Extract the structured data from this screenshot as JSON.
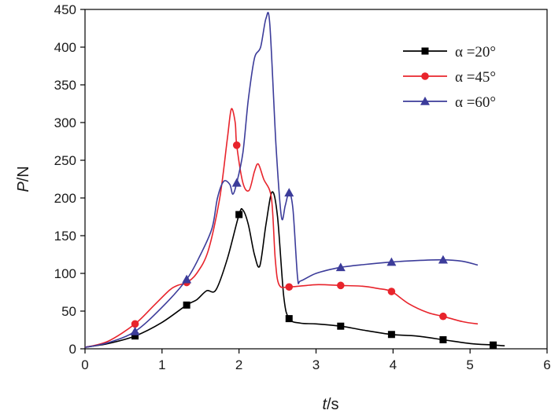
{
  "chart_data": {
    "type": "line",
    "xlabel": {
      "var": "t",
      "unit": "/s"
    },
    "ylabel": {
      "var": "P",
      "unit": "/N"
    },
    "xlim": [
      0,
      6
    ],
    "ylim": [
      0,
      450
    ],
    "xticks": [
      0,
      1,
      2,
      3,
      4,
      5,
      6
    ],
    "yticks": [
      0,
      50,
      100,
      150,
      200,
      250,
      300,
      350,
      400,
      450
    ],
    "grid": false,
    "legend_position": "top-right",
    "series": [
      {
        "name": "α =20°",
        "color": "#000000",
        "marker": "square",
        "markers": [
          [
            0.65,
            17
          ],
          [
            1.32,
            58
          ],
          [
            2.0,
            178
          ],
          [
            2.65,
            40
          ],
          [
            3.32,
            30
          ],
          [
            3.98,
            19
          ],
          [
            4.65,
            12
          ],
          [
            5.3,
            5
          ]
        ],
        "curve": [
          [
            0,
            2
          ],
          [
            0.3,
            7
          ],
          [
            0.65,
            17
          ],
          [
            1.0,
            35
          ],
          [
            1.32,
            58
          ],
          [
            1.45,
            65
          ],
          [
            1.58,
            77
          ],
          [
            1.7,
            78
          ],
          [
            1.85,
            120
          ],
          [
            2.0,
            178
          ],
          [
            2.05,
            184
          ],
          [
            2.12,
            165
          ],
          [
            2.2,
            125
          ],
          [
            2.27,
            110
          ],
          [
            2.35,
            165
          ],
          [
            2.43,
            208
          ],
          [
            2.5,
            175
          ],
          [
            2.58,
            70
          ],
          [
            2.65,
            40
          ],
          [
            2.8,
            34
          ],
          [
            3.0,
            33
          ],
          [
            3.32,
            30
          ],
          [
            3.6,
            25
          ],
          [
            3.98,
            19
          ],
          [
            4.3,
            17
          ],
          [
            4.65,
            12
          ],
          [
            5.0,
            7
          ],
          [
            5.3,
            5
          ],
          [
            5.45,
            4
          ]
        ]
      },
      {
        "name": "α =45°",
        "color": "#e8242c",
        "marker": "circle",
        "markers": [
          [
            0.65,
            33
          ],
          [
            1.32,
            88
          ],
          [
            1.97,
            270
          ],
          [
            2.65,
            82
          ],
          [
            3.32,
            84
          ],
          [
            3.98,
            76
          ],
          [
            4.65,
            43
          ]
        ],
        "curve": [
          [
            0,
            2
          ],
          [
            0.3,
            10
          ],
          [
            0.65,
            33
          ],
          [
            0.9,
            58
          ],
          [
            1.1,
            78
          ],
          [
            1.2,
            84
          ],
          [
            1.32,
            88
          ],
          [
            1.45,
            100
          ],
          [
            1.6,
            130
          ],
          [
            1.75,
            200
          ],
          [
            1.85,
            280
          ],
          [
            1.9,
            318
          ],
          [
            1.95,
            300
          ],
          [
            1.97,
            270
          ],
          [
            2.05,
            220
          ],
          [
            2.13,
            210
          ],
          [
            2.2,
            235
          ],
          [
            2.25,
            245
          ],
          [
            2.32,
            225
          ],
          [
            2.42,
            200
          ],
          [
            2.47,
            120
          ],
          [
            2.52,
            85
          ],
          [
            2.65,
            82
          ],
          [
            3.0,
            85
          ],
          [
            3.32,
            84
          ],
          [
            3.6,
            83
          ],
          [
            3.8,
            80
          ],
          [
            3.98,
            76
          ],
          [
            4.2,
            60
          ],
          [
            4.45,
            48
          ],
          [
            4.65,
            43
          ],
          [
            4.9,
            36
          ],
          [
            5.1,
            33
          ]
        ]
      },
      {
        "name": "α =60°",
        "color": "#3c3c9a",
        "marker": "triangle",
        "markers": [
          [
            0.65,
            23
          ],
          [
            1.32,
            92
          ],
          [
            1.97,
            220
          ],
          [
            2.65,
            207
          ],
          [
            3.32,
            108
          ],
          [
            3.98,
            115
          ],
          [
            4.65,
            118
          ]
        ],
        "curve": [
          [
            0,
            2
          ],
          [
            0.3,
            8
          ],
          [
            0.65,
            23
          ],
          [
            1.0,
            55
          ],
          [
            1.32,
            92
          ],
          [
            1.5,
            125
          ],
          [
            1.65,
            160
          ],
          [
            1.72,
            200
          ],
          [
            1.8,
            222
          ],
          [
            1.88,
            218
          ],
          [
            1.92,
            205
          ],
          [
            1.97,
            220
          ],
          [
            2.05,
            260
          ],
          [
            2.12,
            330
          ],
          [
            2.2,
            385
          ],
          [
            2.28,
            400
          ],
          [
            2.35,
            438
          ],
          [
            2.4,
            430
          ],
          [
            2.48,
            270
          ],
          [
            2.55,
            175
          ],
          [
            2.6,
            190
          ],
          [
            2.65,
            207
          ],
          [
            2.7,
            185
          ],
          [
            2.76,
            95
          ],
          [
            2.8,
            90
          ],
          [
            3.0,
            100
          ],
          [
            3.32,
            108
          ],
          [
            3.65,
            112
          ],
          [
            3.98,
            115
          ],
          [
            4.3,
            117
          ],
          [
            4.65,
            118
          ],
          [
            4.9,
            116
          ],
          [
            5.1,
            111
          ]
        ]
      }
    ]
  }
}
